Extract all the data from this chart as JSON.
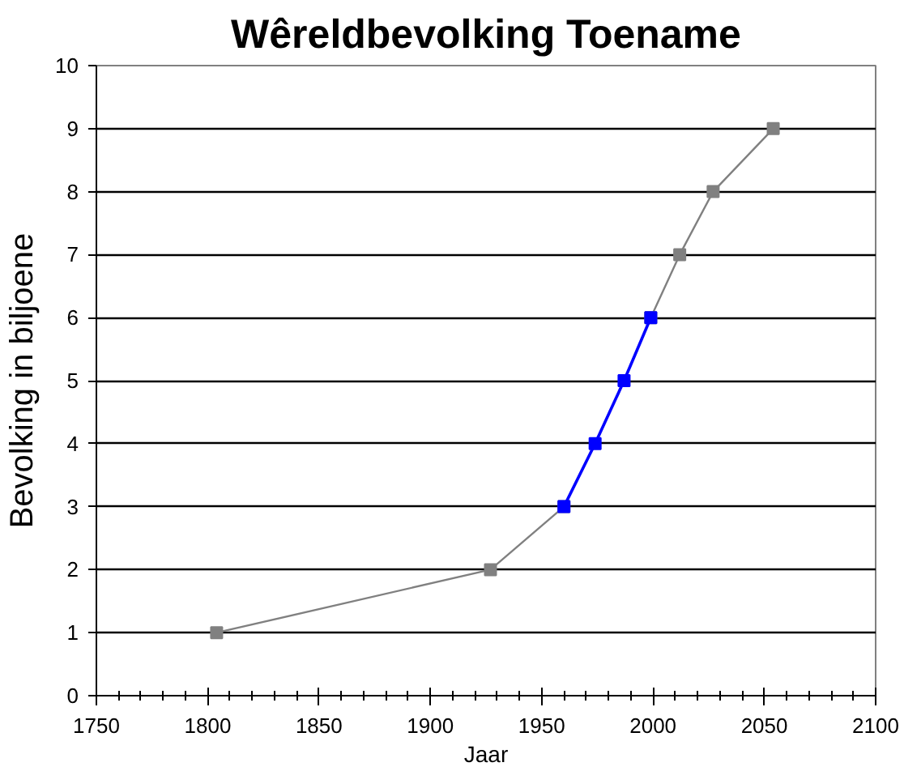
{
  "chart_data": {
    "type": "line",
    "title": "Wêreldbevolking Toename",
    "xlabel": "Jaar",
    "ylabel": "Bevolking in biljoene",
    "series": [
      {
        "color": "#808080",
        "x": [
          1804,
          1927,
          1960
        ],
        "values": [
          1,
          2,
          3
        ]
      },
      {
        "color": "#808080",
        "x": [
          1999,
          2012,
          2027,
          2054
        ],
        "values": [
          6,
          7,
          8,
          9
        ]
      },
      {
        "color": "#0000ff",
        "x": [
          1960,
          1974,
          1987,
          1999
        ],
        "values": [
          3,
          4,
          5,
          6
        ]
      }
    ],
    "xlim": [
      1750,
      2100
    ],
    "xticks": [
      1750,
      {
        "value": 1760,
        "label": null
      },
      {
        "value": 1770,
        "label": null
      },
      {
        "value": 1780,
        "label": null
      },
      {
        "value": 1790,
        "label": null
      },
      1800,
      {
        "value": 1810,
        "label": null
      },
      {
        "value": 1820,
        "label": null
      },
      {
        "value": 1830,
        "label": null
      },
      {
        "value": 1840,
        "label": null
      },
      1850,
      {
        "value": 1860,
        "label": null
      },
      {
        "value": 1870,
        "label": null
      },
      {
        "value": 1880,
        "label": null
      },
      {
        "value": 1890,
        "label": null
      },
      1900,
      {
        "value": 1910,
        "label": null
      },
      {
        "value": 1920,
        "label": null
      },
      {
        "value": 1930,
        "label": null
      },
      {
        "value": 1940,
        "label": null
      },
      1950,
      {
        "value": 1960,
        "label": null
      },
      {
        "value": 1970,
        "label": null
      },
      {
        "value": 1980,
        "label": null
      },
      {
        "value": 1990,
        "label": null
      },
      2000,
      {
        "value": 2010,
        "label": null
      },
      {
        "value": 2020,
        "label": null
      },
      {
        "value": 2030,
        "label": null
      },
      {
        "value": 2040,
        "label": null
      },
      2050,
      {
        "value": 2060,
        "label": null
      },
      {
        "value": 2070,
        "label": null
      },
      {
        "value": 2080,
        "label": null
      },
      {
        "value": 2090,
        "label": null
      },
      2100
    ],
    "ylim": [
      0,
      10
    ],
    "yticks": [
      0,
      1,
      2,
      3,
      4,
      5,
      6,
      7,
      8,
      9,
      10
    ],
    "grid": "y",
    "marker": "square",
    "line_style": "solid"
  }
}
